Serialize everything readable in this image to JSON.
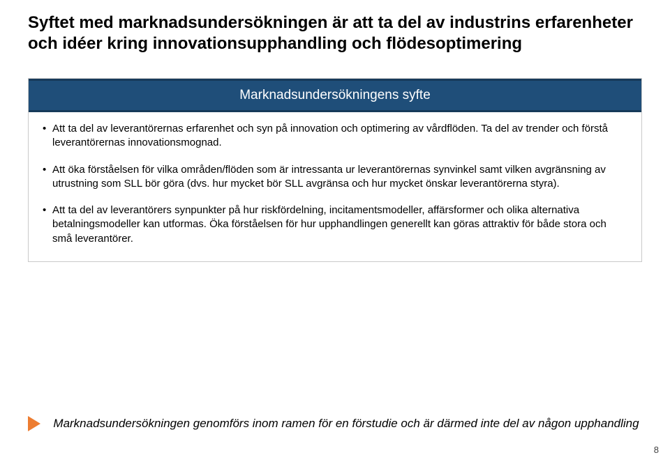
{
  "title": "Syftet med marknadsundersökningen är att ta del av industrins erfarenheter och idéer kring innovationsupphandling och flödesoptimering",
  "box": {
    "header": "Marknadsundersökningens syfte",
    "bullets": [
      "Att ta del av leverantörernas erfarenhet och syn på innovation och optimering av vårdflöden. Ta del av trender och förstå leverantörernas innovationsmognad.",
      "Att öka förståelsen för vilka områden/flöden som är intressanta ur leverantörernas synvinkel samt vilken avgränsning av utrustning som SLL bör göra (dvs. hur mycket bör SLL avgränsa och hur mycket önskar leverantörerna styra).",
      "Att ta del av leverantörers synpunkter på hur riskfördelning, incitamentsmodeller, affärsformer och olika alternativa betalningsmodeller kan utformas. Öka förståelsen för hur upphandlingen generellt kan göras attraktiv för både stora och små leverantörer."
    ]
  },
  "footer": "Marknadsundersökningen genomförs inom ramen för en förstudie och är därmed inte del av någon upphandling",
  "page_number": "8",
  "colors": {
    "header_bg": "#1f4e79",
    "header_border": "#163a5a",
    "arrow": "#ed7d31",
    "box_border": "#c9c9c9",
    "text": "#000000",
    "page_num": "#404040",
    "bg": "#ffffff"
  }
}
